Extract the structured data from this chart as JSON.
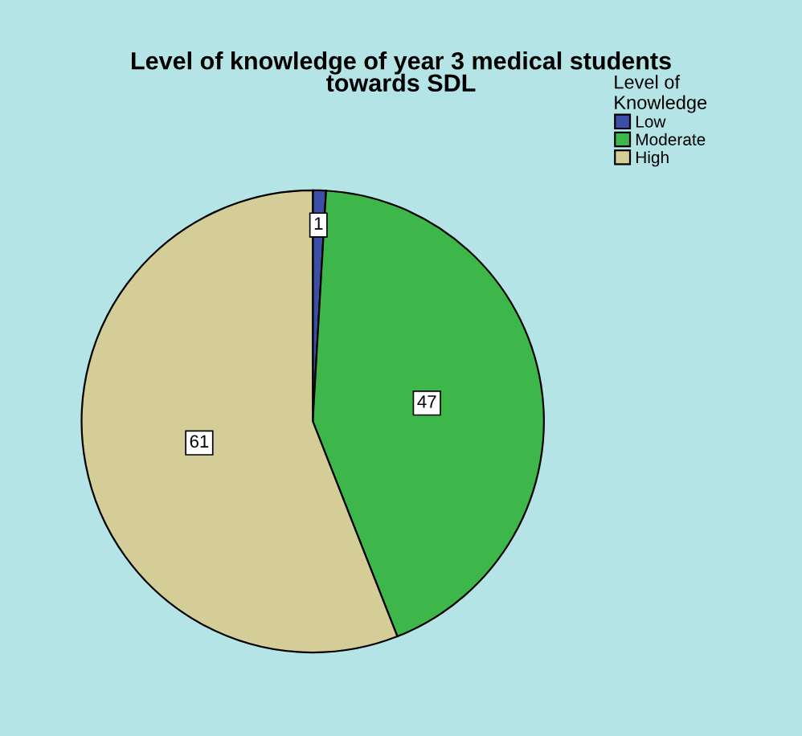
{
  "chart_data": {
    "type": "pie",
    "title": "Level of knowledge of year 3 medical students\ntowards SDL",
    "legend_title": "Level of\nKnowledge",
    "categories": [
      "Low",
      "Moderate",
      "High"
    ],
    "values": [
      1,
      47,
      61
    ],
    "colors": [
      "#3b4fa6",
      "#3db74a",
      "#d5cd98"
    ],
    "data_labels": true,
    "legend": "top right"
  }
}
